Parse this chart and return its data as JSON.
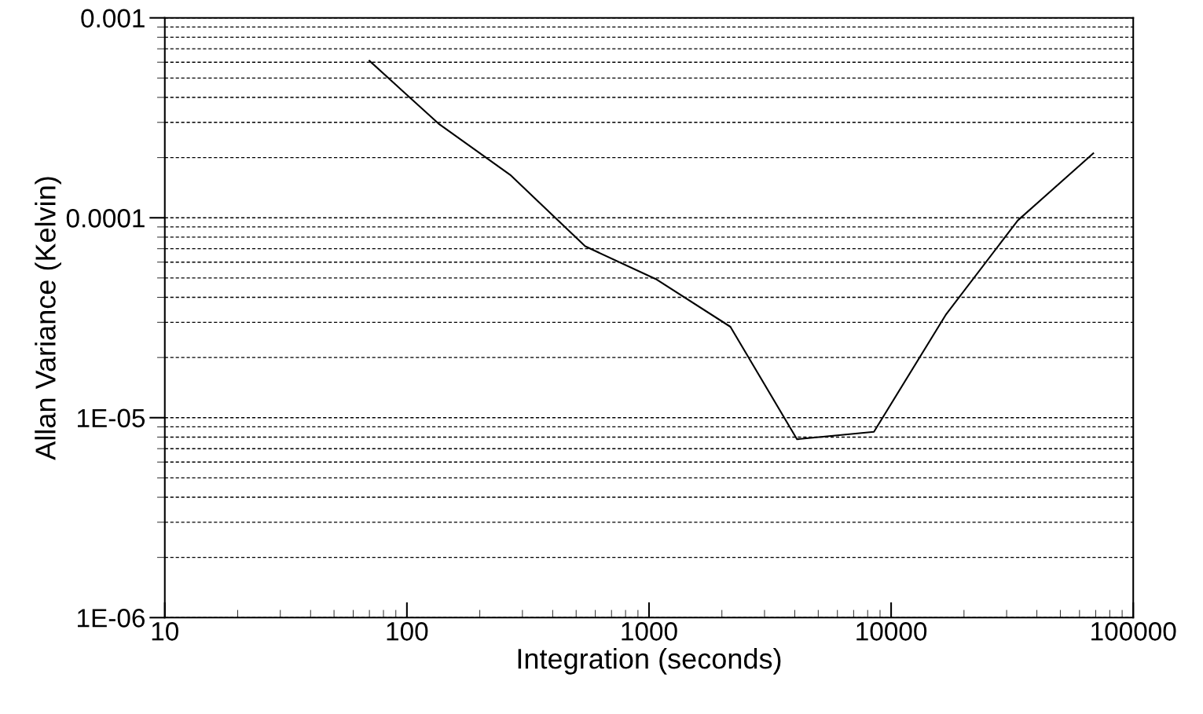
{
  "chart_data": {
    "type": "line",
    "xlabel": "Integration (seconds)",
    "ylabel": "Allan Variance (Kelvin)",
    "x": [
      70,
      135,
      267,
      545,
      1066,
      2168,
      4086,
      8492,
      16900,
      33360,
      68400
    ],
    "series": [
      {
        "color": "#000000",
        "values": [
          0.00061,
          0.000296,
          0.000164,
          7.2e-05,
          4.94e-05,
          2.85e-05,
          7.8e-06,
          8.5e-06,
          3.3e-05,
          9.7e-05,
          0.00021
        ]
      }
    ],
    "log": "xy",
    "xlim": [
      10,
      100000
    ],
    "xticks": [
      10,
      100,
      1000,
      10000,
      100000
    ],
    "ylim": [
      1e-06,
      0.001
    ],
    "yticks": [
      {
        "value": 1e-06,
        "label": "1E-06"
      },
      {
        "value": 1e-05,
        "label": "1E-05"
      },
      {
        "value": 0.0001,
        "label": "0.0001"
      },
      {
        "value": 0.001,
        "label": "0.001"
      }
    ],
    "grid": "y",
    "line_style": "solid",
    "marker": "none"
  }
}
